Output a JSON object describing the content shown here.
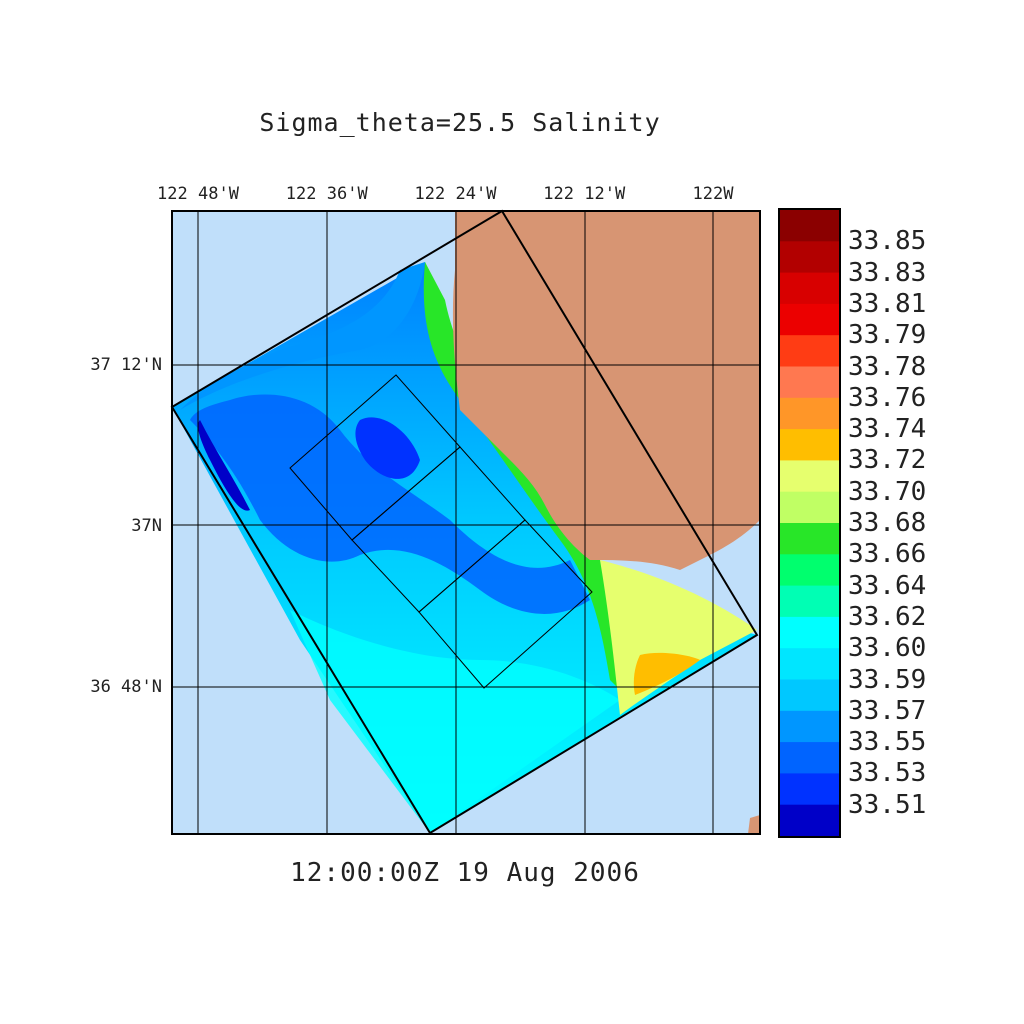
{
  "title": "Sigma_theta=25.5 Salinity",
  "timestamp": "12:00:00Z  19 Aug 2006",
  "lon_ticks": [
    {
      "label": "122 48'W",
      "lon": -122.8
    },
    {
      "label": "122 36'W",
      "lon": -122.6
    },
    {
      "label": "122 24'W",
      "lon": -122.4
    },
    {
      "label": "122 12'W",
      "lon": -122.2
    },
    {
      "label": "122W",
      "lon": -122.0
    }
  ],
  "lat_ticks": [
    {
      "label": "37 12'N",
      "lat": 37.2
    },
    {
      "label": "37N",
      "lat": 37.0
    },
    {
      "label": "36 48'N",
      "lat": 36.8
    }
  ],
  "colors": {
    "ocean_outside": "#c0dffa",
    "land": "#d79573"
  },
  "colorbar": {
    "labels": [
      "33.85",
      "33.83",
      "33.81",
      "33.79",
      "33.78",
      "33.76",
      "33.74",
      "33.72",
      "33.70",
      "33.68",
      "33.66",
      "33.64",
      "33.62",
      "33.60",
      "33.59",
      "33.57",
      "33.55",
      "33.53",
      "33.51"
    ],
    "colors": [
      "#8b0000",
      "#b20000",
      "#d80000",
      "#ec0000",
      "#ff3c14",
      "#ff7850",
      "#ff9628",
      "#ffbe00",
      "#e6ff6e",
      "#c0ff64",
      "#28e628",
      "#00ff6e",
      "#00ffb4",
      "#00ffff",
      "#00e6ff",
      "#00c8ff",
      "#0096ff",
      "#0064ff",
      "#0032ff",
      "#0000c8"
    ]
  }
}
